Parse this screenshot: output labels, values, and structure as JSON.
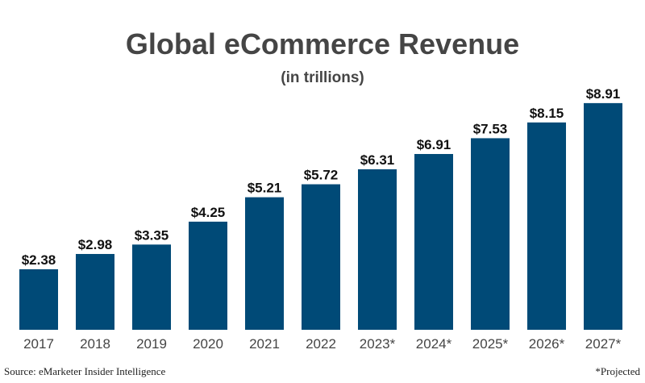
{
  "chart_data": {
    "type": "bar",
    "title": "Global eCommerce Revenue",
    "subtitle": "(in trillions)",
    "categories": [
      "2017",
      "2018",
      "2019",
      "2020",
      "2021",
      "2022",
      "2023*",
      "2024*",
      "2025*",
      "2026*",
      "2027*"
    ],
    "values": [
      2.38,
      2.98,
      3.35,
      4.25,
      5.21,
      5.72,
      6.31,
      6.91,
      7.53,
      8.15,
      8.91
    ],
    "data_labels": [
      "$2.38",
      "$2.98",
      "$3.35",
      "$4.25",
      "$5.21",
      "$5.72",
      "$6.31",
      "$6.91",
      "$7.53",
      "$8.15",
      "$8.91"
    ],
    "xlabel": "",
    "ylabel": "",
    "ylim": [
      0,
      9
    ],
    "grid": false,
    "bar_color": "#004a77",
    "source": "Source: eMarketer Insider Intelligence",
    "note": "*Projected"
  }
}
